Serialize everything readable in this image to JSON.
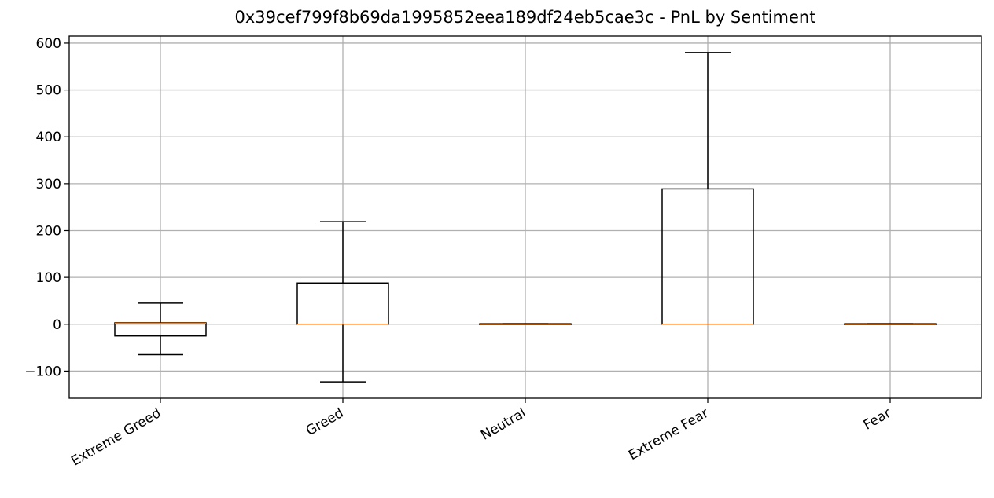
{
  "chart_data": {
    "type": "boxplot",
    "title": "0x39cef799f8b69da1995852eea189df24eb5cae3c - PnL by Sentiment",
    "xlabel": "",
    "ylabel": "",
    "categories": [
      "Extreme Greed",
      "Greed",
      "Neutral",
      "Extreme Fear",
      "Fear"
    ],
    "boxes": [
      {
        "category": "Extreme Greed",
        "whisker_low": -65,
        "q1": -25,
        "median": 2,
        "q3": 3,
        "whisker_high": 45
      },
      {
        "category": "Greed",
        "whisker_low": -123,
        "q1": 0,
        "median": 0,
        "q3": 88,
        "whisker_high": 219
      },
      {
        "category": "Neutral",
        "whisker_low": 0,
        "q1": 0,
        "median": 0,
        "q3": 1,
        "whisker_high": 1
      },
      {
        "category": "Extreme Fear",
        "whisker_low": 0,
        "q1": 0,
        "median": 0,
        "q3": 289,
        "whisker_high": 580
      },
      {
        "category": "Fear",
        "whisker_low": 0,
        "q1": 0,
        "median": 0,
        "q3": 1,
        "whisker_high": 1
      }
    ],
    "yticks": [
      -100,
      0,
      100,
      200,
      300,
      400,
      500,
      600
    ],
    "ylim": [
      -158,
      615
    ],
    "grid": true,
    "colors": {
      "box": "#000000",
      "median": "#ff7f0e",
      "grid": "#b0b0b0"
    }
  }
}
